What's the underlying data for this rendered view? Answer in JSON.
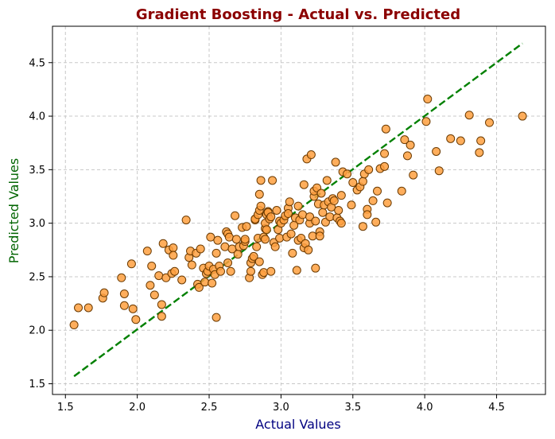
{
  "chart_data": {
    "type": "scatter",
    "title": "Gradient Boosting - Actual vs. Predicted",
    "xlabel": "Actual Values",
    "ylabel": "Predicted Values",
    "xlim": [
      1.41,
      4.84
    ],
    "ylim": [
      1.4,
      4.84
    ],
    "xticks": [
      "1.5",
      "2.0",
      "2.5",
      "3.0",
      "3.5",
      "4.0",
      "4.5"
    ],
    "yticks": [
      "1.5",
      "2.0",
      "2.5",
      "3.0",
      "3.5",
      "4.0",
      "4.5"
    ],
    "grid": true,
    "colors": {
      "title": "#8b0000",
      "xlabel": "#000080",
      "ylabel": "#006400",
      "point_fill": "#ffa040",
      "point_edge": "#6b3a00",
      "reference_line": "#008000",
      "grid": "#c8c8c8"
    },
    "reference_line": {
      "x": [
        1.56,
        4.68
      ],
      "y": [
        1.57,
        4.68
      ],
      "style": "dashed"
    },
    "series": [
      {
        "points": [
          [
            1.56,
            2.05
          ],
          [
            1.59,
            2.21
          ],
          [
            1.66,
            2.21
          ],
          [
            1.76,
            2.3
          ],
          [
            1.77,
            2.35
          ],
          [
            1.89,
            2.49
          ],
          [
            1.91,
            2.23
          ],
          [
            1.91,
            2.34
          ],
          [
            1.96,
            2.62
          ],
          [
            1.97,
            2.2
          ],
          [
            1.99,
            2.1
          ],
          [
            2.07,
            2.74
          ],
          [
            2.09,
            2.42
          ],
          [
            2.1,
            2.6
          ],
          [
            2.12,
            2.33
          ],
          [
            2.15,
            2.51
          ],
          [
            2.17,
            2.24
          ],
          [
            2.17,
            2.13
          ],
          [
            2.18,
            2.81
          ],
          [
            2.2,
            2.49
          ],
          [
            2.22,
            2.75
          ],
          [
            2.24,
            2.53
          ],
          [
            2.25,
            2.77
          ],
          [
            2.25,
            2.7
          ],
          [
            2.26,
            2.55
          ],
          [
            2.31,
            2.47
          ],
          [
            2.34,
            3.03
          ],
          [
            2.36,
            2.68
          ],
          [
            2.37,
            2.74
          ],
          [
            2.38,
            2.61
          ],
          [
            2.41,
            2.72
          ],
          [
            2.42,
            2.43
          ],
          [
            2.43,
            2.4
          ],
          [
            2.44,
            2.76
          ],
          [
            2.46,
            2.58
          ],
          [
            2.47,
            2.45
          ],
          [
            2.48,
            2.53
          ],
          [
            2.49,
            2.55
          ],
          [
            2.5,
            2.6
          ],
          [
            2.51,
            2.87
          ],
          [
            2.52,
            2.44
          ],
          [
            2.53,
            2.57
          ],
          [
            2.54,
            2.52
          ],
          [
            2.55,
            2.12
          ],
          [
            2.55,
            2.72
          ],
          [
            2.56,
            2.84
          ],
          [
            2.57,
            2.6
          ],
          [
            2.58,
            2.55
          ],
          [
            2.61,
            2.78
          ],
          [
            2.62,
            2.92
          ],
          [
            2.63,
            2.63
          ],
          [
            2.63,
            2.9
          ],
          [
            2.64,
            2.87
          ],
          [
            2.65,
            2.55
          ],
          [
            2.66,
            2.76
          ],
          [
            2.68,
            3.07
          ],
          [
            2.69,
            2.85
          ],
          [
            2.7,
            2.71
          ],
          [
            2.71,
            2.78
          ],
          [
            2.73,
            2.96
          ],
          [
            2.74,
            2.79
          ],
          [
            2.75,
            2.83
          ],
          [
            2.75,
            2.85
          ],
          [
            2.76,
            2.97
          ],
          [
            2.78,
            2.49
          ],
          [
            2.79,
            2.55
          ],
          [
            2.79,
            2.63
          ],
          [
            2.8,
            2.67
          ],
          [
            2.81,
            2.69
          ],
          [
            2.82,
            3.03
          ],
          [
            2.82,
            3.04
          ],
          [
            2.83,
            2.78
          ],
          [
            2.84,
            2.86
          ],
          [
            2.84,
            3.08
          ],
          [
            2.85,
            3.12
          ],
          [
            2.85,
            3.27
          ],
          [
            2.85,
            2.64
          ],
          [
            2.86,
            3.4
          ],
          [
            2.86,
            3.16
          ],
          [
            2.87,
            2.52
          ],
          [
            2.88,
            2.54
          ],
          [
            2.88,
            2.87
          ],
          [
            2.89,
            2.85
          ],
          [
            2.89,
            2.95
          ],
          [
            2.89,
            3.0
          ],
          [
            2.9,
            2.94
          ],
          [
            2.9,
            3.08
          ],
          [
            2.91,
            3.11
          ],
          [
            2.91,
            3.1
          ],
          [
            2.92,
            3.04
          ],
          [
            2.93,
            3.06
          ],
          [
            2.93,
            2.55
          ],
          [
            2.94,
            3.4
          ],
          [
            2.95,
            2.82
          ],
          [
            2.96,
            2.78
          ],
          [
            2.97,
            3.12
          ],
          [
            2.98,
            2.94
          ],
          [
            2.99,
            3.02
          ],
          [
            2.99,
            2.86
          ],
          [
            3.0,
            3.0
          ],
          [
            3.02,
            3.03
          ],
          [
            3.03,
            3.07
          ],
          [
            3.04,
            2.87
          ],
          [
            3.05,
            3.14
          ],
          [
            3.05,
            3.09
          ],
          [
            3.06,
            3.2
          ],
          [
            3.07,
            2.9
          ],
          [
            3.08,
            2.72
          ],
          [
            3.09,
            2.98
          ],
          [
            3.1,
            3.05
          ],
          [
            3.11,
            2.56
          ],
          [
            3.12,
            2.84
          ],
          [
            3.12,
            3.16
          ],
          [
            3.13,
            3.03
          ],
          [
            3.14,
            2.86
          ],
          [
            3.15,
            3.08
          ],
          [
            3.16,
            2.77
          ],
          [
            3.16,
            3.36
          ],
          [
            3.17,
            2.81
          ],
          [
            3.18,
            3.6
          ],
          [
            3.19,
            2.75
          ],
          [
            3.2,
            3.0
          ],
          [
            3.2,
            3.06
          ],
          [
            3.21,
            3.64
          ],
          [
            3.22,
            2.88
          ],
          [
            3.23,
            3.25
          ],
          [
            3.23,
            3.3
          ],
          [
            3.24,
            2.58
          ],
          [
            3.24,
            3.02
          ],
          [
            3.25,
            3.33
          ],
          [
            3.26,
            3.18
          ],
          [
            3.27,
            2.92
          ],
          [
            3.27,
            2.88
          ],
          [
            3.28,
            3.28
          ],
          [
            3.29,
            3.1
          ],
          [
            3.3,
            3.17
          ],
          [
            3.31,
            3.01
          ],
          [
            3.32,
            3.4
          ],
          [
            3.33,
            3.2
          ],
          [
            3.34,
            3.06
          ],
          [
            3.35,
            3.15
          ],
          [
            3.36,
            3.23
          ],
          [
            3.37,
            3.21
          ],
          [
            3.38,
            3.57
          ],
          [
            3.39,
            3.05
          ],
          [
            3.4,
            3.12
          ],
          [
            3.41,
            3.02
          ],
          [
            3.42,
            3.0
          ],
          [
            3.42,
            3.26
          ],
          [
            3.43,
            3.48
          ],
          [
            3.46,
            3.46
          ],
          [
            3.49,
            3.17
          ],
          [
            3.5,
            3.38
          ],
          [
            3.53,
            3.31
          ],
          [
            3.55,
            3.34
          ],
          [
            3.57,
            2.97
          ],
          [
            3.57,
            3.39
          ],
          [
            3.58,
            3.46
          ],
          [
            3.6,
            3.13
          ],
          [
            3.6,
            3.08
          ],
          [
            3.61,
            3.5
          ],
          [
            3.64,
            3.21
          ],
          [
            3.66,
            3.01
          ],
          [
            3.67,
            3.3
          ],
          [
            3.69,
            3.51
          ],
          [
            3.72,
            3.65
          ],
          [
            3.72,
            3.53
          ],
          [
            3.73,
            3.88
          ],
          [
            3.74,
            3.19
          ],
          [
            3.84,
            3.3
          ],
          [
            3.86,
            3.78
          ],
          [
            3.88,
            3.63
          ],
          [
            3.9,
            3.73
          ],
          [
            3.92,
            3.45
          ],
          [
            4.01,
            3.95
          ],
          [
            4.02,
            4.16
          ],
          [
            4.08,
            3.67
          ],
          [
            4.1,
            3.49
          ],
          [
            4.18,
            3.79
          ],
          [
            4.25,
            3.77
          ],
          [
            4.31,
            4.01
          ],
          [
            4.38,
            3.66
          ],
          [
            4.39,
            3.77
          ],
          [
            4.45,
            3.94
          ],
          [
            4.68,
            4.0
          ]
        ]
      }
    ]
  }
}
